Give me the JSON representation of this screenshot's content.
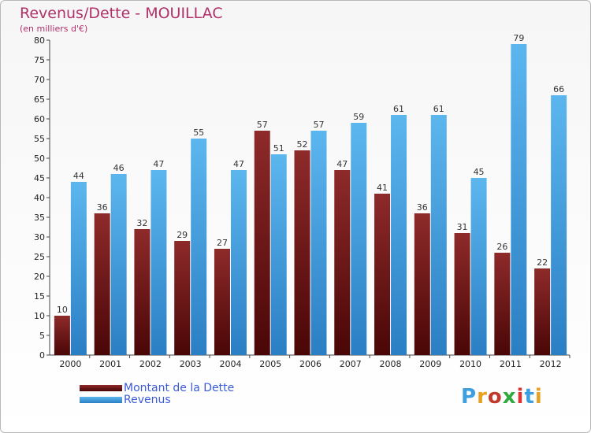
{
  "chart_data": {
    "type": "bar",
    "title": "Revenus/Dette - MOUILLAC",
    "subtitle": "(en milliers d'€)",
    "categories": [
      "2000",
      "2001",
      "2002",
      "2003",
      "2004",
      "2005",
      "2006",
      "2007",
      "2008",
      "2009",
      "2010",
      "2011",
      "2012"
    ],
    "series": [
      {
        "name": "Montant de la Dette",
        "color": "#7a1212",
        "values": [
          10,
          36,
          32,
          29,
          27,
          57,
          52,
          47,
          41,
          36,
          31,
          26,
          22
        ]
      },
      {
        "name": "Revenus",
        "color": "#3d9ee0",
        "values": [
          44,
          46,
          47,
          55,
          47,
          51,
          57,
          59,
          61,
          61,
          45,
          79,
          66
        ]
      }
    ],
    "ylim": [
      0,
      80
    ],
    "yticks": [
      0,
      5,
      10,
      15,
      20,
      25,
      30,
      35,
      40,
      45,
      50,
      55,
      60,
      65,
      70,
      75,
      80
    ],
    "grid": false,
    "legend_position": "bottom-left"
  },
  "logo": {
    "text": "Proxiti",
    "colors": [
      "#3d9ee0",
      "#e8a020",
      "#c0392b",
      "#2eaa3e",
      "#d33",
      "#3d9ee0",
      "#e8a020"
    ]
  }
}
